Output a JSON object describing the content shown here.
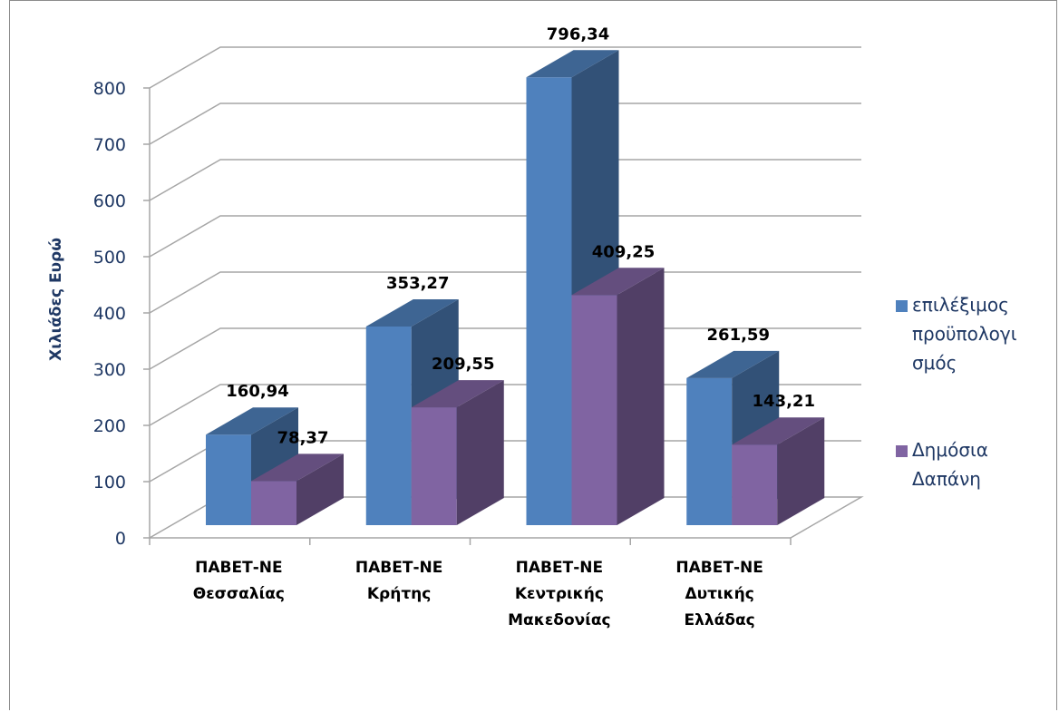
{
  "chart_data": {
    "type": "bar",
    "title": "",
    "xlabel": "",
    "ylabel": "Χιλιάδες Ευρώ",
    "ylim": [
      0,
      800
    ],
    "yticks": [
      0,
      100,
      200,
      300,
      400,
      500,
      600,
      700,
      800
    ],
    "categories": [
      [
        "ΠΑΒΕΤ-ΝΕ",
        "Θεσσαλίας"
      ],
      [
        "ΠΑΒΕΤ-ΝΕ",
        "Κρήτης"
      ],
      [
        "ΠΑΒΕΤ-ΝΕ",
        "Κεντρικής",
        "Μακεδονίας"
      ],
      [
        "ΠΑΒΕΤ-ΝΕ",
        "Δυτικής",
        "Ελλάδας"
      ]
    ],
    "series": [
      {
        "name": "επιλέξιμος προϋπολογισμός",
        "legend_lines": [
          "επιλέξιμος",
          "προϋπολογι",
          "σμός"
        ],
        "values": [
          160.94,
          353.27,
          796.34,
          261.59
        ],
        "labels": [
          "160,94",
          "353,27",
          "796,34",
          "261,59"
        ],
        "color": "#4f81bd"
      },
      {
        "name": "Δημόσια Δαπάνη",
        "legend_lines": [
          "Δημόσια",
          "Δαπάνη"
        ],
        "values": [
          78.37,
          209.55,
          409.25,
          143.21
        ],
        "labels": [
          "78,37",
          "209,55",
          "409,25",
          "143,21"
        ],
        "color": "#8064a2"
      }
    ],
    "legend_position": "right",
    "grid": true,
    "style": "3d-clustered-column"
  }
}
